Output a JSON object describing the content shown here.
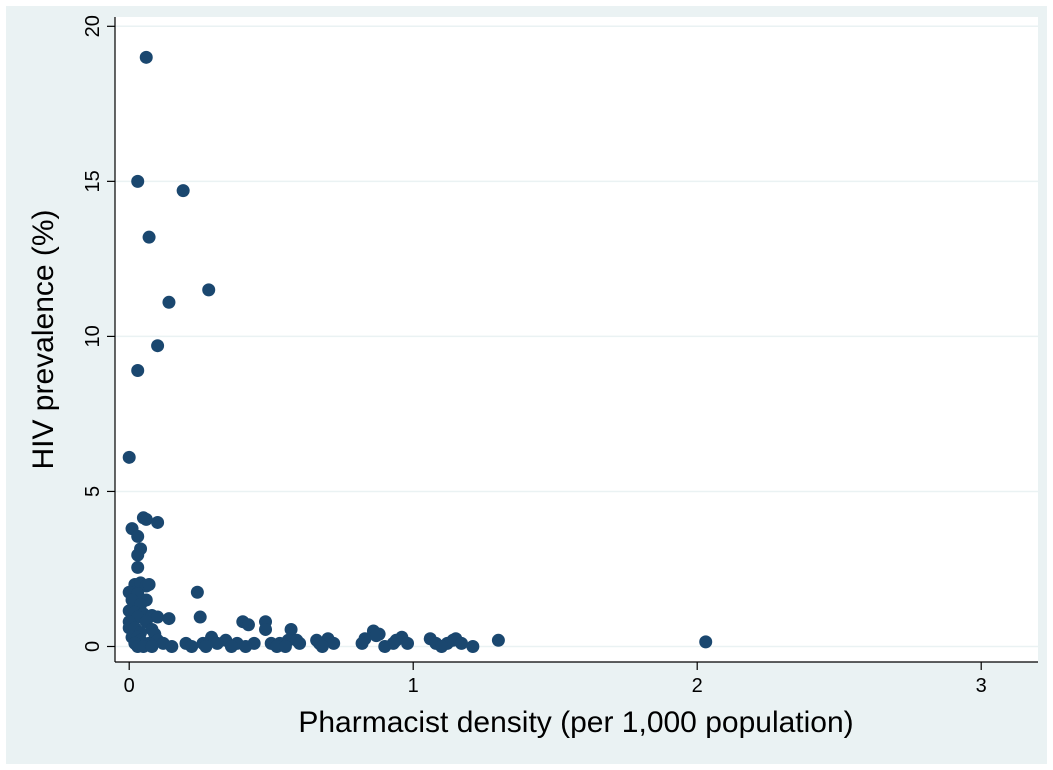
{
  "chart_data": {
    "type": "scatter",
    "title": "",
    "xlabel": "Pharmacist density (per 1,000 population)",
    "ylabel": "HIV prevalence (%)",
    "xlim": [
      -0.05,
      3.2
    ],
    "ylim": [
      -0.5,
      20.3
    ],
    "xticks": [
      0,
      1,
      2,
      3
    ],
    "yticks": [
      0,
      5,
      10,
      15,
      20
    ],
    "grid": "horizontal",
    "legend": "none",
    "colors": {
      "marker": "#1a476f",
      "plot_bg": "#ffffff",
      "outer_bg": "#eaf2f3",
      "grid": "#eaf2f3"
    },
    "points": [
      [
        0.06,
        19.0
      ],
      [
        0.03,
        15.0
      ],
      [
        0.19,
        14.7
      ],
      [
        0.07,
        13.2
      ],
      [
        0.28,
        11.5
      ],
      [
        0.14,
        11.1
      ],
      [
        0.1,
        9.7
      ],
      [
        0.03,
        8.9
      ],
      [
        0.0,
        6.1
      ],
      [
        0.05,
        4.15
      ],
      [
        0.06,
        4.1
      ],
      [
        0.1,
        4.0
      ],
      [
        0.01,
        3.8
      ],
      [
        0.03,
        3.55
      ],
      [
        0.04,
        3.15
      ],
      [
        0.03,
        2.95
      ],
      [
        0.03,
        2.55
      ],
      [
        0.02,
        2.0
      ],
      [
        0.04,
        2.05
      ],
      [
        0.06,
        1.95
      ],
      [
        0.07,
        2.0
      ],
      [
        0.24,
        1.75
      ],
      [
        0.0,
        1.75
      ],
      [
        0.03,
        1.7
      ],
      [
        0.01,
        1.5
      ],
      [
        0.06,
        1.5
      ],
      [
        0.04,
        1.35
      ],
      [
        0.0,
        1.15
      ],
      [
        0.02,
        1.1
      ],
      [
        0.05,
        1.05
      ],
      [
        0.08,
        1.0
      ],
      [
        0.03,
        0.95
      ],
      [
        0.1,
        0.95
      ],
      [
        0.14,
        0.9
      ],
      [
        0.25,
        0.95
      ],
      [
        0.0,
        0.8
      ],
      [
        0.06,
        0.8
      ],
      [
        0.4,
        0.8
      ],
      [
        0.48,
        0.8
      ],
      [
        0.42,
        0.7
      ],
      [
        0.0,
        0.6
      ],
      [
        0.02,
        0.6
      ],
      [
        0.08,
        0.55
      ],
      [
        0.48,
        0.55
      ],
      [
        0.57,
        0.55
      ],
      [
        0.86,
        0.5
      ],
      [
        0.04,
        0.45
      ],
      [
        0.09,
        0.4
      ],
      [
        0.88,
        0.4
      ],
      [
        0.87,
        0.35
      ],
      [
        0.01,
        0.3
      ],
      [
        0.03,
        0.3
      ],
      [
        0.29,
        0.3
      ],
      [
        0.96,
        0.3
      ],
      [
        0.7,
        0.25
      ],
      [
        0.83,
        0.25
      ],
      [
        1.06,
        0.25
      ],
      [
        1.15,
        0.25
      ],
      [
        1.3,
        0.2
      ],
      [
        0.04,
        0.2
      ],
      [
        0.1,
        0.2
      ],
      [
        0.34,
        0.2
      ],
      [
        0.56,
        0.2
      ],
      [
        0.59,
        0.2
      ],
      [
        0.66,
        0.2
      ],
      [
        0.94,
        0.2
      ],
      [
        1.14,
        0.2
      ],
      [
        2.03,
        0.15
      ],
      [
        0.02,
        0.1
      ],
      [
        0.07,
        0.1
      ],
      [
        0.12,
        0.1
      ],
      [
        0.2,
        0.1
      ],
      [
        0.26,
        0.1
      ],
      [
        0.31,
        0.1
      ],
      [
        0.38,
        0.1
      ],
      [
        0.44,
        0.1
      ],
      [
        0.5,
        0.1
      ],
      [
        0.53,
        0.1
      ],
      [
        0.6,
        0.1
      ],
      [
        0.67,
        0.1
      ],
      [
        0.72,
        0.1
      ],
      [
        0.82,
        0.1
      ],
      [
        0.93,
        0.1
      ],
      [
        0.98,
        0.1
      ],
      [
        1.08,
        0.1
      ],
      [
        1.12,
        0.1
      ],
      [
        1.17,
        0.1
      ],
      [
        0.03,
        0.0
      ],
      [
        0.05,
        0.0
      ],
      [
        0.08,
        0.0
      ],
      [
        0.15,
        0.0
      ],
      [
        0.22,
        0.0
      ],
      [
        0.27,
        0.0
      ],
      [
        0.36,
        0.0
      ],
      [
        0.41,
        0.0
      ],
      [
        0.52,
        0.0
      ],
      [
        0.55,
        0.0
      ],
      [
        0.68,
        0.0
      ],
      [
        0.9,
        0.0
      ],
      [
        1.1,
        0.0
      ],
      [
        1.21,
        0.0
      ]
    ]
  }
}
